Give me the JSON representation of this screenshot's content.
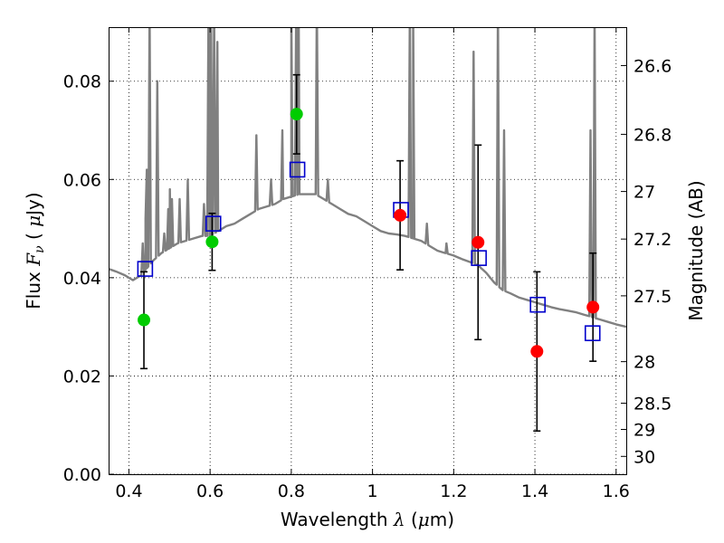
{
  "chart_data": {
    "type": "scatter",
    "xlabel_text": "Wavelength",
    "xlabel_symbol": "λ",
    "xlabel_unit_open": " (",
    "xlabel_unit_mu": "μ",
    "xlabel_unit_close": "m)",
    "ylabel_text": "Flux",
    "ylabel_symbol": "F",
    "ylabel_sub": "ν",
    "ylabel_unit_open": "(",
    "ylabel_unit_mu": "μ",
    "ylabel_unit_close": "Jy)",
    "y2label": "Magnitude (AB)",
    "xlim": [
      0.35,
      1.625
    ],
    "ylim": [
      0.0,
      0.091
    ],
    "grid": true,
    "x_ticks": [
      {
        "value": 0.4,
        "label": "0.4"
      },
      {
        "value": 0.6,
        "label": "0.6"
      },
      {
        "value": 0.8,
        "label": "0.8"
      },
      {
        "value": 1.0,
        "label": "1"
      },
      {
        "value": 1.2,
        "label": "1.2"
      },
      {
        "value": 1.4,
        "label": "1.4"
      },
      {
        "value": 1.6,
        "label": "1.6"
      }
    ],
    "y_ticks": [
      {
        "value": 0.0,
        "label": "0.00"
      },
      {
        "value": 0.02,
        "label": "0.02"
      },
      {
        "value": 0.04,
        "label": "0.04"
      },
      {
        "value": 0.06,
        "label": "0.06"
      },
      {
        "value": 0.08,
        "label": "0.08"
      }
    ],
    "y2_ticks": [
      {
        "value": 26.6,
        "label": "26.6"
      },
      {
        "value": 26.8,
        "label": "26.8"
      },
      {
        "value": 27.0,
        "label": "27"
      },
      {
        "value": 27.2,
        "label": "27.2"
      },
      {
        "value": 27.5,
        "label": "27.5"
      },
      {
        "value": 28.0,
        "label": "28"
      },
      {
        "value": 28.5,
        "label": "28.5"
      },
      {
        "value": 29.0,
        "label": "29"
      },
      {
        "value": 30.0,
        "label": "30"
      }
    ],
    "series": [
      {
        "kind": "model_spectrum",
        "color": "#808080",
        "continuum": [
          [
            0.35,
            0.0418
          ],
          [
            0.37,
            0.0412
          ],
          [
            0.39,
            0.0405
          ],
          [
            0.41,
            0.0395
          ],
          [
            0.43,
            0.0405
          ],
          [
            0.445,
            0.042
          ],
          [
            0.46,
            0.0435
          ],
          [
            0.48,
            0.045
          ],
          [
            0.5,
            0.046
          ],
          [
            0.52,
            0.047
          ],
          [
            0.54,
            0.0475
          ],
          [
            0.56,
            0.048
          ],
          [
            0.58,
            0.0485
          ],
          [
            0.6,
            0.0485
          ],
          [
            0.62,
            0.0495
          ],
          [
            0.64,
            0.0505
          ],
          [
            0.66,
            0.051
          ],
          [
            0.68,
            0.052
          ],
          [
            0.7,
            0.053
          ],
          [
            0.72,
            0.054
          ],
          [
            0.74,
            0.0545
          ],
          [
            0.76,
            0.055
          ],
          [
            0.78,
            0.056
          ],
          [
            0.8,
            0.0565
          ],
          [
            0.82,
            0.057
          ],
          [
            0.84,
            0.057
          ],
          [
            0.86,
            0.057
          ],
          [
            0.88,
            0.056
          ],
          [
            0.9,
            0.055
          ],
          [
            0.92,
            0.054
          ],
          [
            0.94,
            0.053
          ],
          [
            0.96,
            0.0525
          ],
          [
            0.98,
            0.0515
          ],
          [
            1.0,
            0.0505
          ],
          [
            1.02,
            0.0495
          ],
          [
            1.04,
            0.049
          ],
          [
            1.06,
            0.0488
          ],
          [
            1.08,
            0.0485
          ],
          [
            1.1,
            0.048
          ],
          [
            1.12,
            0.0475
          ],
          [
            1.14,
            0.0465
          ],
          [
            1.16,
            0.0455
          ],
          [
            1.18,
            0.045
          ],
          [
            1.2,
            0.0445
          ],
          [
            1.22,
            0.0438
          ],
          [
            1.24,
            0.0432
          ],
          [
            1.26,
            0.0425
          ],
          [
            1.28,
            0.041
          ],
          [
            1.3,
            0.039
          ],
          [
            1.32,
            0.0375
          ],
          [
            1.34,
            0.0368
          ],
          [
            1.36,
            0.036
          ],
          [
            1.38,
            0.0355
          ],
          [
            1.4,
            0.035
          ],
          [
            1.42,
            0.0345
          ],
          [
            1.44,
            0.034
          ],
          [
            1.46,
            0.0336
          ],
          [
            1.48,
            0.0333
          ],
          [
            1.5,
            0.033
          ],
          [
            1.52,
            0.0325
          ],
          [
            1.54,
            0.032
          ],
          [
            1.56,
            0.0315
          ],
          [
            1.58,
            0.031
          ],
          [
            1.6,
            0.0305
          ],
          [
            1.625,
            0.03
          ]
        ],
        "emission_lines": [
          [
            0.434,
            0.047
          ],
          [
            0.441,
            0.052
          ],
          [
            0.444,
            0.062
          ],
          [
            0.451,
            0.096
          ],
          [
            0.47,
            0.08
          ],
          [
            0.487,
            0.049
          ],
          [
            0.497,
            0.054
          ],
          [
            0.501,
            0.058
          ],
          [
            0.506,
            0.056
          ],
          [
            0.525,
            0.056
          ],
          [
            0.545,
            0.06
          ],
          [
            0.585,
            0.055
          ],
          [
            0.596,
            0.095
          ],
          [
            0.602,
            0.098
          ],
          [
            0.61,
            0.095
          ],
          [
            0.618,
            0.088
          ],
          [
            0.714,
            0.069
          ],
          [
            0.75,
            0.06
          ],
          [
            0.778,
            0.07
          ],
          [
            0.8,
            0.096
          ],
          [
            0.812,
            0.096
          ],
          [
            0.818,
            0.096
          ],
          [
            0.863,
            0.097
          ],
          [
            0.89,
            0.06
          ],
          [
            1.092,
            0.096
          ],
          [
            1.1,
            0.095
          ],
          [
            1.134,
            0.051
          ],
          [
            1.182,
            0.047
          ],
          [
            1.249,
            0.086
          ],
          [
            1.309,
            0.096
          ],
          [
            1.324,
            0.07
          ],
          [
            1.537,
            0.07
          ],
          [
            1.547,
            0.095
          ]
        ]
      },
      {
        "kind": "model_photometry",
        "color": "#0000cc",
        "points": [
          {
            "x": 0.44,
            "y": 0.0418
          },
          {
            "x": 0.608,
            "y": 0.051
          },
          {
            "x": 0.815,
            "y": 0.062
          },
          {
            "x": 1.07,
            "y": 0.0538
          },
          {
            "x": 1.262,
            "y": 0.044
          },
          {
            "x": 1.407,
            "y": 0.0345
          },
          {
            "x": 1.542,
            "y": 0.0287
          }
        ]
      },
      {
        "kind": "observed_photometry",
        "color": "#00cc00",
        "points": [
          {
            "x": 0.437,
            "y": 0.0314,
            "err_low": 0.0215,
            "err_high": 0.0412
          },
          {
            "x": 0.605,
            "y": 0.0473,
            "err_low": 0.0415,
            "err_high": 0.0531
          },
          {
            "x": 0.813,
            "y": 0.0733,
            "err_low": 0.0652,
            "err_high": 0.0813
          }
        ]
      },
      {
        "kind": "observed_photometry",
        "color": "#ff0000",
        "points": [
          {
            "x": 1.068,
            "y": 0.0527,
            "err_low": 0.0416,
            "err_high": 0.0638
          },
          {
            "x": 1.26,
            "y": 0.0472,
            "err_low": 0.0274,
            "err_high": 0.067
          },
          {
            "x": 1.405,
            "y": 0.025,
            "err_low": 0.0088,
            "err_high": 0.0412
          },
          {
            "x": 1.543,
            "y": 0.034,
            "err_low": 0.023,
            "err_high": 0.045
          }
        ]
      }
    ]
  }
}
